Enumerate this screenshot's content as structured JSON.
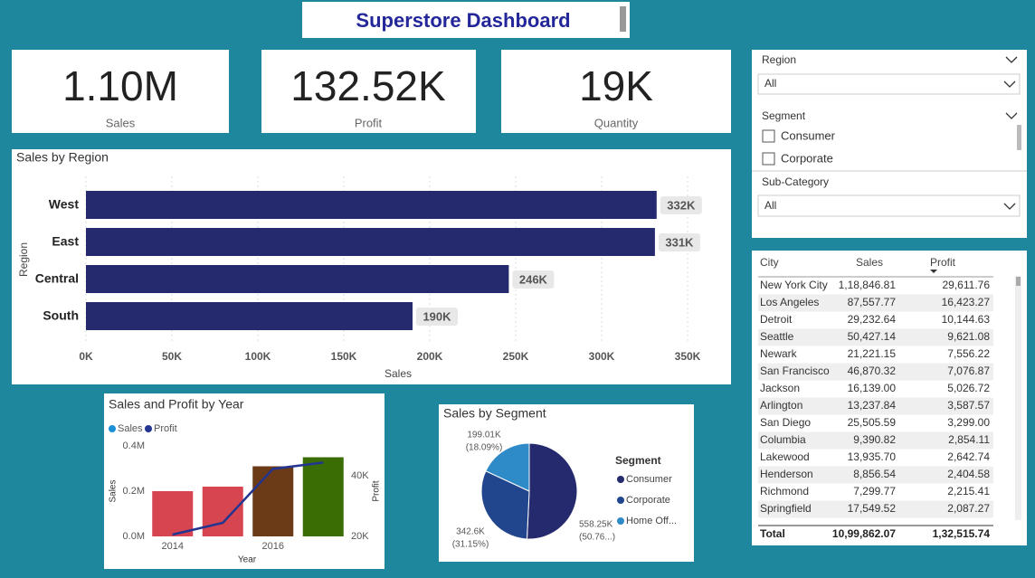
{
  "header": {
    "title": "Superstore Dashboard"
  },
  "kpis": [
    {
      "value": "1.10M",
      "label": "Sales"
    },
    {
      "value": "132.52K",
      "label": "Profit"
    },
    {
      "value": "19K",
      "label": "Quantity"
    }
  ],
  "filters": {
    "region": {
      "label": "Region",
      "value": "All"
    },
    "segment": {
      "label": "Segment",
      "options": [
        "Consumer",
        "Corporate"
      ]
    },
    "subcategory": {
      "label": "Sub-Category",
      "value": "All"
    }
  },
  "chart_data": [
    {
      "type": "bar",
      "orientation": "horizontal",
      "title": "Sales by Region",
      "x_label": "Sales",
      "y_label": "Region",
      "categories": [
        "West",
        "East",
        "Central",
        "South"
      ],
      "values": [
        332000,
        331000,
        246000,
        190000
      ],
      "value_labels": [
        "332K",
        "331K",
        "246K",
        "190K"
      ],
      "color": "#252a6e",
      "xlim": [
        0,
        370000
      ],
      "xticks": [
        {
          "value": 0,
          "label": "0K"
        },
        {
          "value": 50000,
          "label": "50K"
        },
        {
          "value": 100000,
          "label": "100K"
        },
        {
          "value": 150000,
          "label": "150K"
        },
        {
          "value": 200000,
          "label": "200K"
        },
        {
          "value": 250000,
          "label": "250K"
        },
        {
          "value": 300000,
          "label": "300K"
        },
        {
          "value": 350000,
          "label": "350K"
        }
      ],
      "grid": true
    },
    {
      "type": "combo",
      "title": "Sales and Profit by Year",
      "x_label": "Year",
      "y_label": "Sales",
      "y2_label": "Profit",
      "categories": [
        2014,
        null,
        2016,
        null
      ],
      "series": [
        {
          "name": "Sales",
          "color": "#1a8fd6",
          "colors": [
            "#d64550",
            "#d64550",
            "#6b3a16",
            "#3a6e05"
          ],
          "values": [
            200000,
            220000,
            310000,
            350000
          ]
        },
        {
          "name": "Profit",
          "color": "#233590",
          "axis": "y2",
          "values": [
            20600,
            24500,
            42400,
            44500
          ]
        }
      ],
      "ylim": [
        0,
        400000
      ],
      "yticks": [
        {
          "value": 0,
          "label": "0.0M"
        },
        {
          "value": 200000,
          "label": "0.2M"
        },
        {
          "value": 400000,
          "label": "0.4M"
        }
      ],
      "y2lim": [
        20000,
        50000
      ],
      "y2ticks": [
        {
          "value": 20000,
          "label": "20K"
        },
        {
          "value": 40000,
          "label": "40K"
        }
      ]
    },
    {
      "type": "pie",
      "title": "Sales by Segment",
      "legend_title": "Segment",
      "categories": [
        "Consumer",
        "Corporate",
        "Home Off..."
      ],
      "values": [
        558250,
        342600,
        199010
      ],
      "value_labels": [
        "558.25K",
        "342.6K",
        "199.01K"
      ],
      "percent_labels": [
        "(50.76...)",
        "(31.15%)",
        "(18.09%)"
      ],
      "colors": [
        "#252a6e",
        "#22468d",
        "#2f8ac8"
      ]
    }
  ],
  "table": {
    "columns": [
      "City",
      "Sales",
      "Profit"
    ],
    "rows": [
      [
        "New York City",
        "1,18,846.81",
        "29,611.76"
      ],
      [
        "Los Angeles",
        "87,557.77",
        "16,423.27"
      ],
      [
        "Detroit",
        "29,232.64",
        "10,144.63"
      ],
      [
        "Seattle",
        "50,427.14",
        "9,621.08"
      ],
      [
        "Newark",
        "21,221.15",
        "7,556.22"
      ],
      [
        "San Francisco",
        "46,870.32",
        "7,076.87"
      ],
      [
        "Jackson",
        "16,139.00",
        "5,026.72"
      ],
      [
        "Arlington",
        "13,237.84",
        "3,587.57"
      ],
      [
        "San Diego",
        "25,505.59",
        "3,299.00"
      ],
      [
        "Columbia",
        "9,390.82",
        "2,854.11"
      ],
      [
        "Lakewood",
        "13,935.70",
        "2,642.74"
      ],
      [
        "Henderson",
        "8,856.54",
        "2,404.58"
      ],
      [
        "Richmond",
        "7,299.77",
        "2,215.41"
      ],
      [
        "Springfield",
        "17,549.52",
        "2,087.27"
      ]
    ],
    "total": [
      "Total",
      "10,99,862.07",
      "1,32,515.74"
    ]
  }
}
